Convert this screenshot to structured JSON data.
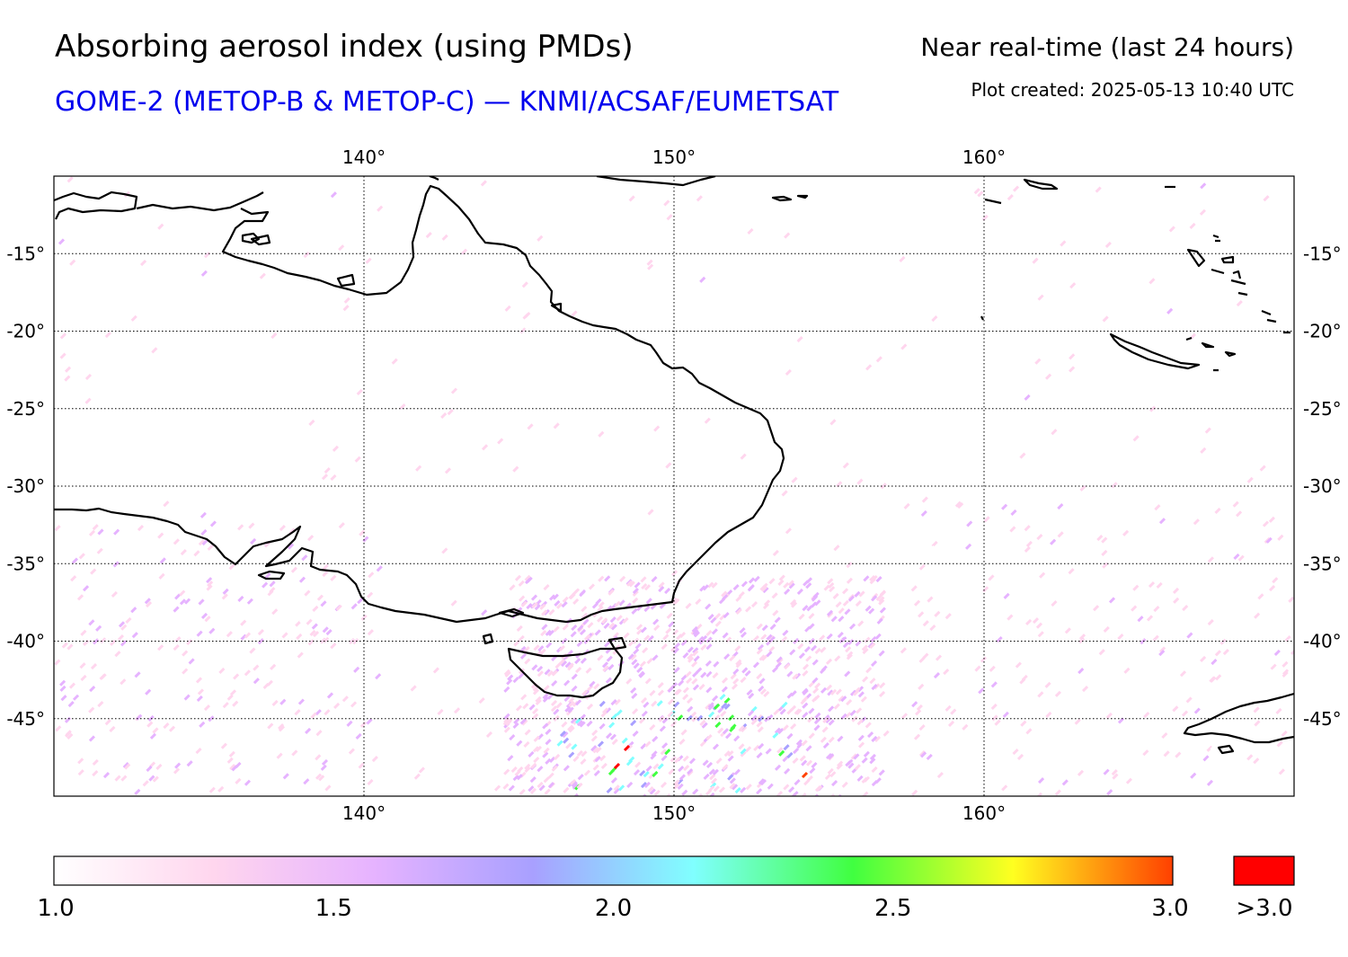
{
  "header": {
    "title": "Absorbing aerosol index (using PMDs)",
    "subtitle": "GOME-2 (METOP-B & METOP-C) — KNMI/ACSAF/EUMETSAT",
    "period": "Near real-time (last 24 hours)",
    "created": "Plot created: 2025-05-13 10:40 UTC"
  },
  "colors": {
    "subtitle": "#0000ee",
    "overflow": "#ff0000",
    "coast": "#000000",
    "colorbar_stops": [
      "#ffffff",
      "#ffd6ee",
      "#e6b3ff",
      "#a8a0ff",
      "#80ffff",
      "#40ff40",
      "#ffff20",
      "#ff4000"
    ]
  },
  "map": {
    "lon_range": [
      130,
      170
    ],
    "lat_range": [
      -50,
      -10
    ],
    "lon_ticks": [
      {
        "value": 140,
        "label": "140°"
      },
      {
        "value": 150,
        "label": "150°"
      },
      {
        "value": 160,
        "label": "160°"
      }
    ],
    "lat_ticks": [
      {
        "value": -15,
        "label": "-15°"
      },
      {
        "value": -20,
        "label": "-20°"
      },
      {
        "value": -25,
        "label": "-25°"
      },
      {
        "value": -30,
        "label": "-30°"
      },
      {
        "value": -35,
        "label": "-35°"
      },
      {
        "value": -40,
        "label": "-40°"
      },
      {
        "value": -45,
        "label": "-45°"
      }
    ],
    "gridlines": "dotted"
  },
  "colorbar": {
    "min": 1.0,
    "max": 3.0,
    "tick_labels": [
      "1.0",
      "1.5",
      "2.0",
      "2.5",
      "3.0"
    ],
    "overflow_label": ">3.0"
  }
}
